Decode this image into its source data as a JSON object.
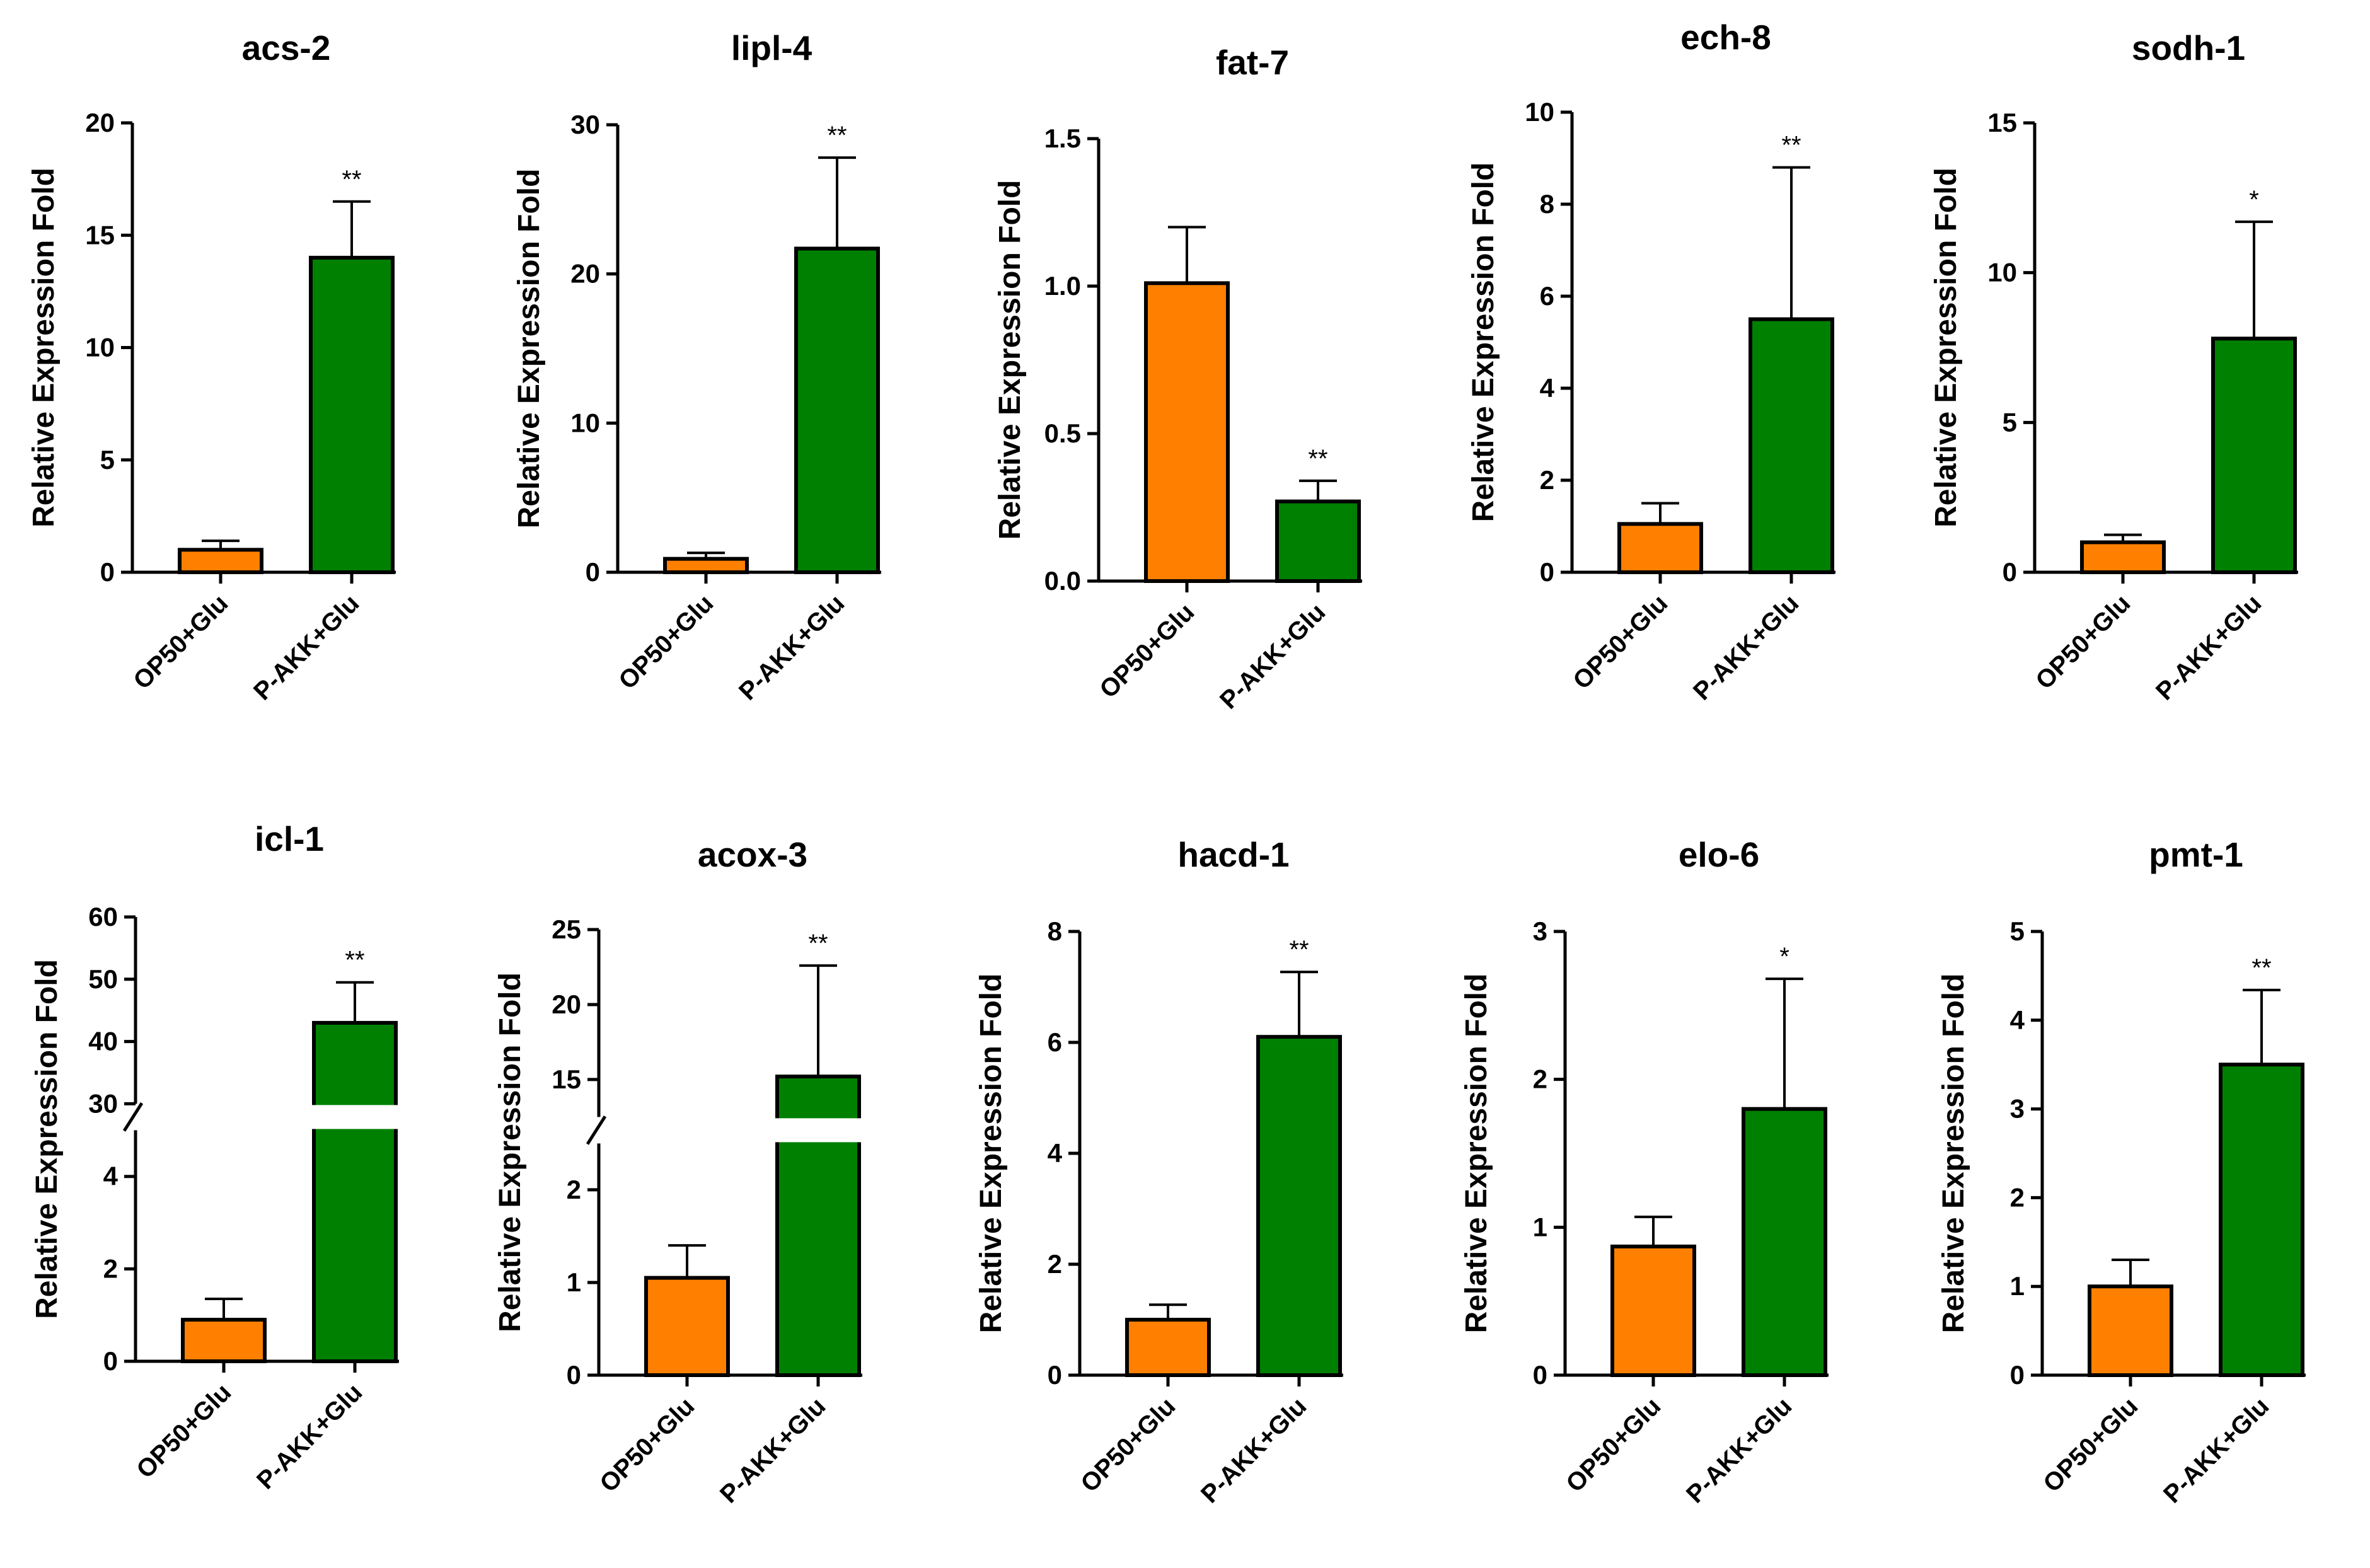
{
  "figure": {
    "colors": {
      "OP50+Glu": "#FF8000",
      "P-AKK+Glu": "#008000",
      "axis": "#000000"
    }
  },
  "chart_data": [
    {
      "type": "bar",
      "title": "acs-2",
      "ylabel": "Relative Expression Fold",
      "categories": [
        "OP50+Glu",
        "P-AKK+Glu"
      ],
      "values": [
        1.0,
        14.0
      ],
      "errors": [
        0.4,
        2.5
      ],
      "significance": [
        "",
        "**"
      ],
      "ylim": [
        0,
        20
      ],
      "yticks": [
        0,
        5,
        10,
        15,
        20
      ],
      "ytick_labels": [
        "0",
        "5",
        "10",
        "15",
        "20"
      ]
    },
    {
      "type": "bar",
      "title": "lipl-4",
      "ylabel": "Relative Expression Fold",
      "categories": [
        "OP50+Glu",
        "P-AKK+Glu"
      ],
      "values": [
        0.9,
        21.7
      ],
      "errors": [
        0.4,
        6.1
      ],
      "significance": [
        "",
        "**"
      ],
      "ylim": [
        0,
        30
      ],
      "yticks": [
        0,
        10,
        20,
        30
      ],
      "ytick_labels": [
        "0",
        "10",
        "20",
        "30"
      ]
    },
    {
      "type": "bar",
      "title": "fat-7",
      "ylabel": "Relative Expression Fold",
      "categories": [
        "OP50+Glu",
        "P-AKK+Glu"
      ],
      "values": [
        1.01,
        0.27
      ],
      "errors": [
        0.19,
        0.07
      ],
      "significance": [
        "",
        "**"
      ],
      "ylim": [
        0,
        1.5
      ],
      "yticks": [
        0,
        0.5,
        1.0,
        1.5
      ],
      "ytick_labels": [
        "0.0",
        "0.5",
        "1.0",
        "1.5"
      ]
    },
    {
      "type": "bar",
      "title": "ech-8",
      "ylabel": "Relative Expression Fold",
      "categories": [
        "OP50+Glu",
        "P-AKK+Glu"
      ],
      "values": [
        1.05,
        5.5
      ],
      "errors": [
        0.45,
        3.3
      ],
      "significance": [
        "",
        "**"
      ],
      "ylim": [
        0,
        10
      ],
      "yticks": [
        0,
        2,
        4,
        6,
        8,
        10
      ],
      "ytick_labels": [
        "0",
        "2",
        "4",
        "6",
        "8",
        "10"
      ]
    },
    {
      "type": "bar",
      "title": "sodh-1",
      "ylabel": "Relative Expression Fold",
      "categories": [
        "OP50+Glu",
        "P-AKK+Glu"
      ],
      "values": [
        1.0,
        7.8
      ],
      "errors": [
        0.25,
        3.9
      ],
      "significance": [
        "",
        "*"
      ],
      "ylim": [
        0,
        15
      ],
      "yticks": [
        0,
        5,
        10,
        15
      ],
      "ytick_labels": [
        "0",
        "5",
        "10",
        "15"
      ]
    },
    {
      "type": "bar",
      "title": "icl-1",
      "ylabel": "Relative Expression Fold",
      "categories": [
        "OP50+Glu",
        "P-AKK+Glu"
      ],
      "values": [
        0.9,
        43.0
      ],
      "errors": [
        0.45,
        6.5
      ],
      "significance": [
        "",
        "**"
      ],
      "axis_break": {
        "lower": [
          0,
          5
        ],
        "upper": [
          30,
          60
        ]
      },
      "yticks": [
        0,
        2,
        4,
        30,
        40,
        50,
        60
      ],
      "ytick_labels": [
        "0",
        "2",
        "4",
        "30",
        "40",
        "50",
        "60"
      ]
    },
    {
      "type": "bar",
      "title": "acox-3",
      "ylabel": "Relative Expression Fold",
      "categories": [
        "OP50+Glu",
        "P-AKK+Glu"
      ],
      "values": [
        1.05,
        15.2
      ],
      "errors": [
        0.35,
        7.4
      ],
      "significance": [
        "",
        "**"
      ],
      "axis_break": {
        "lower": [
          0,
          2.5
        ],
        "upper": [
          12.5,
          25
        ]
      },
      "yticks": [
        0,
        1,
        2,
        15,
        20,
        25
      ],
      "ytick_labels": [
        "0",
        "1",
        "2",
        "15",
        "20",
        "25"
      ]
    },
    {
      "type": "bar",
      "title": "hacd-1",
      "ylabel": "Relative Expression Fold",
      "categories": [
        "OP50+Glu",
        "P-AKK+Glu"
      ],
      "values": [
        1.0,
        6.1
      ],
      "errors": [
        0.27,
        1.17
      ],
      "significance": [
        "",
        "**"
      ],
      "ylim": [
        0,
        8
      ],
      "yticks": [
        0,
        2,
        4,
        6,
        8
      ],
      "ytick_labels": [
        "0",
        "2",
        "4",
        "6",
        "8"
      ]
    },
    {
      "type": "bar",
      "title": "elo-6",
      "ylabel": "Relative Expression Fold",
      "categories": [
        "OP50+Glu",
        "P-AKK+Glu"
      ],
      "values": [
        0.87,
        1.8
      ],
      "errors": [
        0.2,
        0.88
      ],
      "significance": [
        "",
        "*"
      ],
      "ylim": [
        0,
        3
      ],
      "yticks": [
        0,
        1,
        2,
        3
      ],
      "ytick_labels": [
        "0",
        "1",
        "2",
        "3"
      ]
    },
    {
      "type": "bar",
      "title": "pmt-1",
      "ylabel": "Relative Expression Fold",
      "categories": [
        "OP50+Glu",
        "P-AKK+Glu"
      ],
      "values": [
        1.0,
        3.5
      ],
      "errors": [
        0.3,
        0.84
      ],
      "significance": [
        "",
        "**"
      ],
      "ylim": [
        0,
        5
      ],
      "yticks": [
        0,
        1,
        2,
        3,
        4,
        5
      ],
      "ytick_labels": [
        "0",
        "1",
        "2",
        "3",
        "4",
        "5"
      ]
    }
  ]
}
